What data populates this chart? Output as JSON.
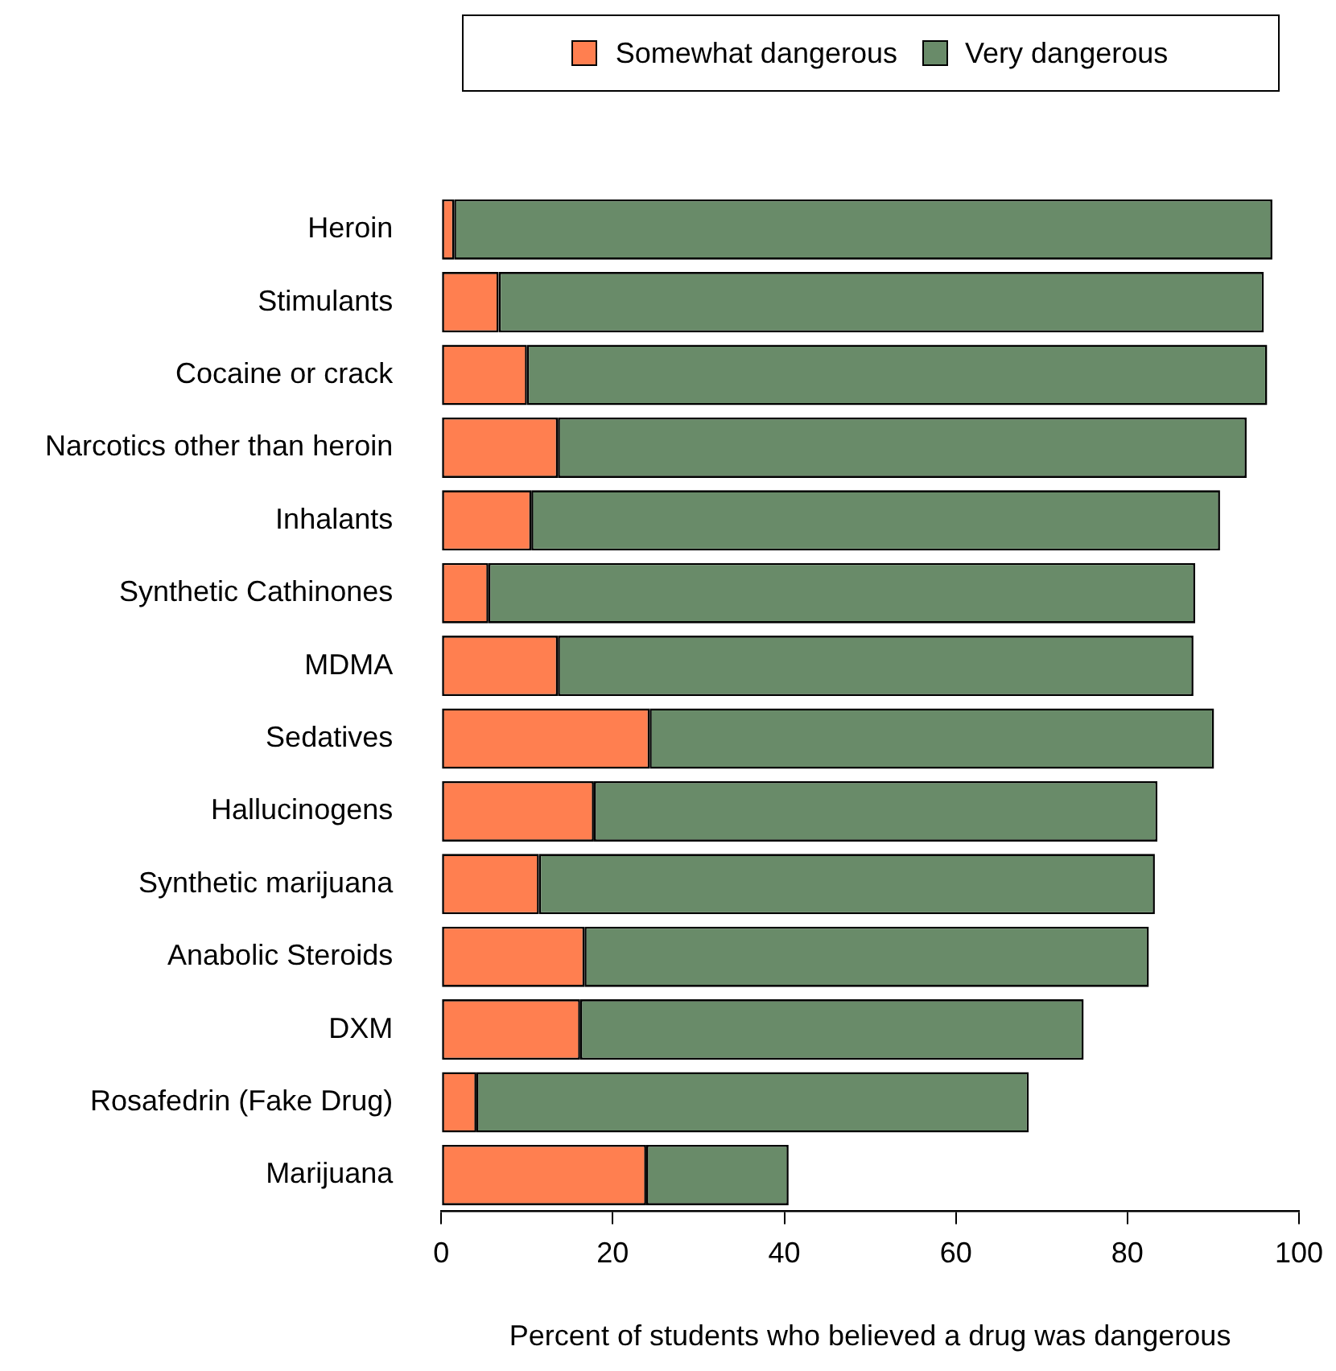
{
  "chart_data": {
    "type": "bar",
    "orientation": "horizontal",
    "stacked": true,
    "xlabel": "Percent of students who believed a drug was dangerous",
    "categories": [
      "Heroin",
      "Stimulants",
      "Cocaine or crack",
      "Narcotics other than heroin",
      "Inhalants",
      "Synthetic Cathinones",
      "MDMA",
      "Sedatives",
      "Hallucinogens",
      "Synthetic marijuana",
      "Anabolic Steroids",
      "DXM",
      "Rosafedrin (Fake Drug)",
      "Marijuana"
    ],
    "series": [
      {
        "name": "Somewhat dangerous",
        "color": "#ff7f50",
        "values": [
          1.5,
          6.7,
          10.0,
          13.6,
          10.5,
          5.5,
          13.6,
          24.3,
          17.8,
          11.4,
          16.7,
          16.2,
          4.1,
          23.9
        ]
      },
      {
        "name": "Very dangerous",
        "color": "#698b69",
        "values": [
          95.4,
          89.2,
          86.3,
          80.3,
          80.3,
          82.4,
          74.1,
          65.8,
          65.7,
          71.8,
          65.8,
          58.7,
          64.4,
          16.6
        ]
      }
    ],
    "xlim": [
      0,
      100
    ],
    "xticks": [
      0,
      20,
      40,
      60,
      80,
      100
    ],
    "grid": false,
    "legend": "top"
  }
}
